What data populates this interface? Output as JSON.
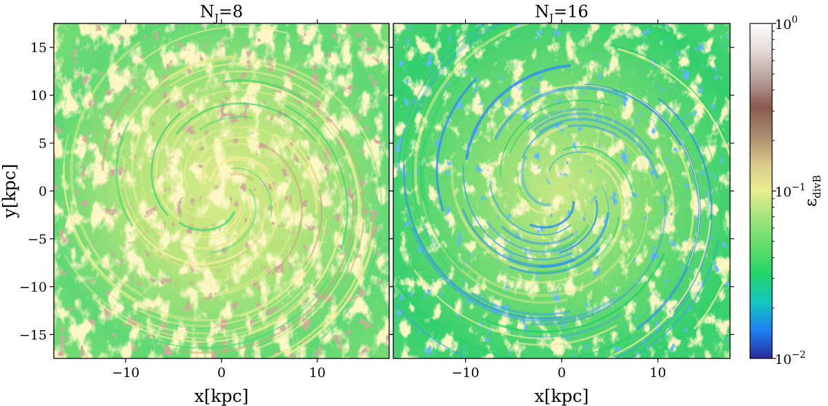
{
  "chart_data": [
    {
      "type": "heatmap",
      "title": "N_J=8",
      "title_main": "N",
      "title_sub": "J",
      "title_tail": "=8",
      "xlabel": "x[kpc]",
      "ylabel": "y[kpc]",
      "xlim": [
        -17.5,
        17.5
      ],
      "ylim": [
        -17.5,
        17.5
      ],
      "xticks": [
        -10,
        0,
        10
      ],
      "xtick_labels": [
        "−10",
        "0",
        "10"
      ],
      "yticks": [
        15,
        10,
        5,
        0,
        -5,
        -10,
        -15
      ],
      "ytick_labels": [
        "15",
        "10",
        "5",
        "0",
        "−5",
        "−10",
        "−15"
      ],
      "description_values": "spiral galaxy map of divergence error, dominated by green (~5e-2) with yellow (~1e-1) spiral arms and brown patches (~3e-1)"
    },
    {
      "type": "heatmap",
      "title": "N_J=16",
      "title_main": "N",
      "title_sub": "J",
      "title_tail": "=16",
      "xlabel": "x[kpc]",
      "ylabel": "",
      "xlim": [
        -17.5,
        17.5
      ],
      "ylim": [
        -17.5,
        17.5
      ],
      "xticks": [
        -10,
        0,
        10
      ],
      "xtick_labels": [
        "−10",
        "0",
        "10"
      ],
      "description_values": "spiral galaxy map of divergence error, mostly green (~4e-2) with blue filaments (~2e-2) and fewer yellow regions"
    }
  ],
  "colorbar": {
    "label_main": "ε",
    "label_sub": "divB",
    "scale": "log",
    "range": [
      0.01,
      1
    ],
    "ticks": [
      {
        "base": "10",
        "exp": "0",
        "value": 1
      },
      {
        "base": "10",
        "exp": "−1",
        "value": 0.1
      },
      {
        "base": "10",
        "exp": "−2",
        "value": 0.01
      }
    ],
    "colormap": "terrain",
    "colors": [
      "#2a2a9a",
      "#1e7ff2",
      "#13c6c0",
      "#22d36a",
      "#62dc6b",
      "#9ce47a",
      "#e8ee90",
      "#d8c78a",
      "#a98a6e",
      "#8a5a4e",
      "#b79f9a",
      "#e3d9d7",
      "#ffffff"
    ]
  }
}
